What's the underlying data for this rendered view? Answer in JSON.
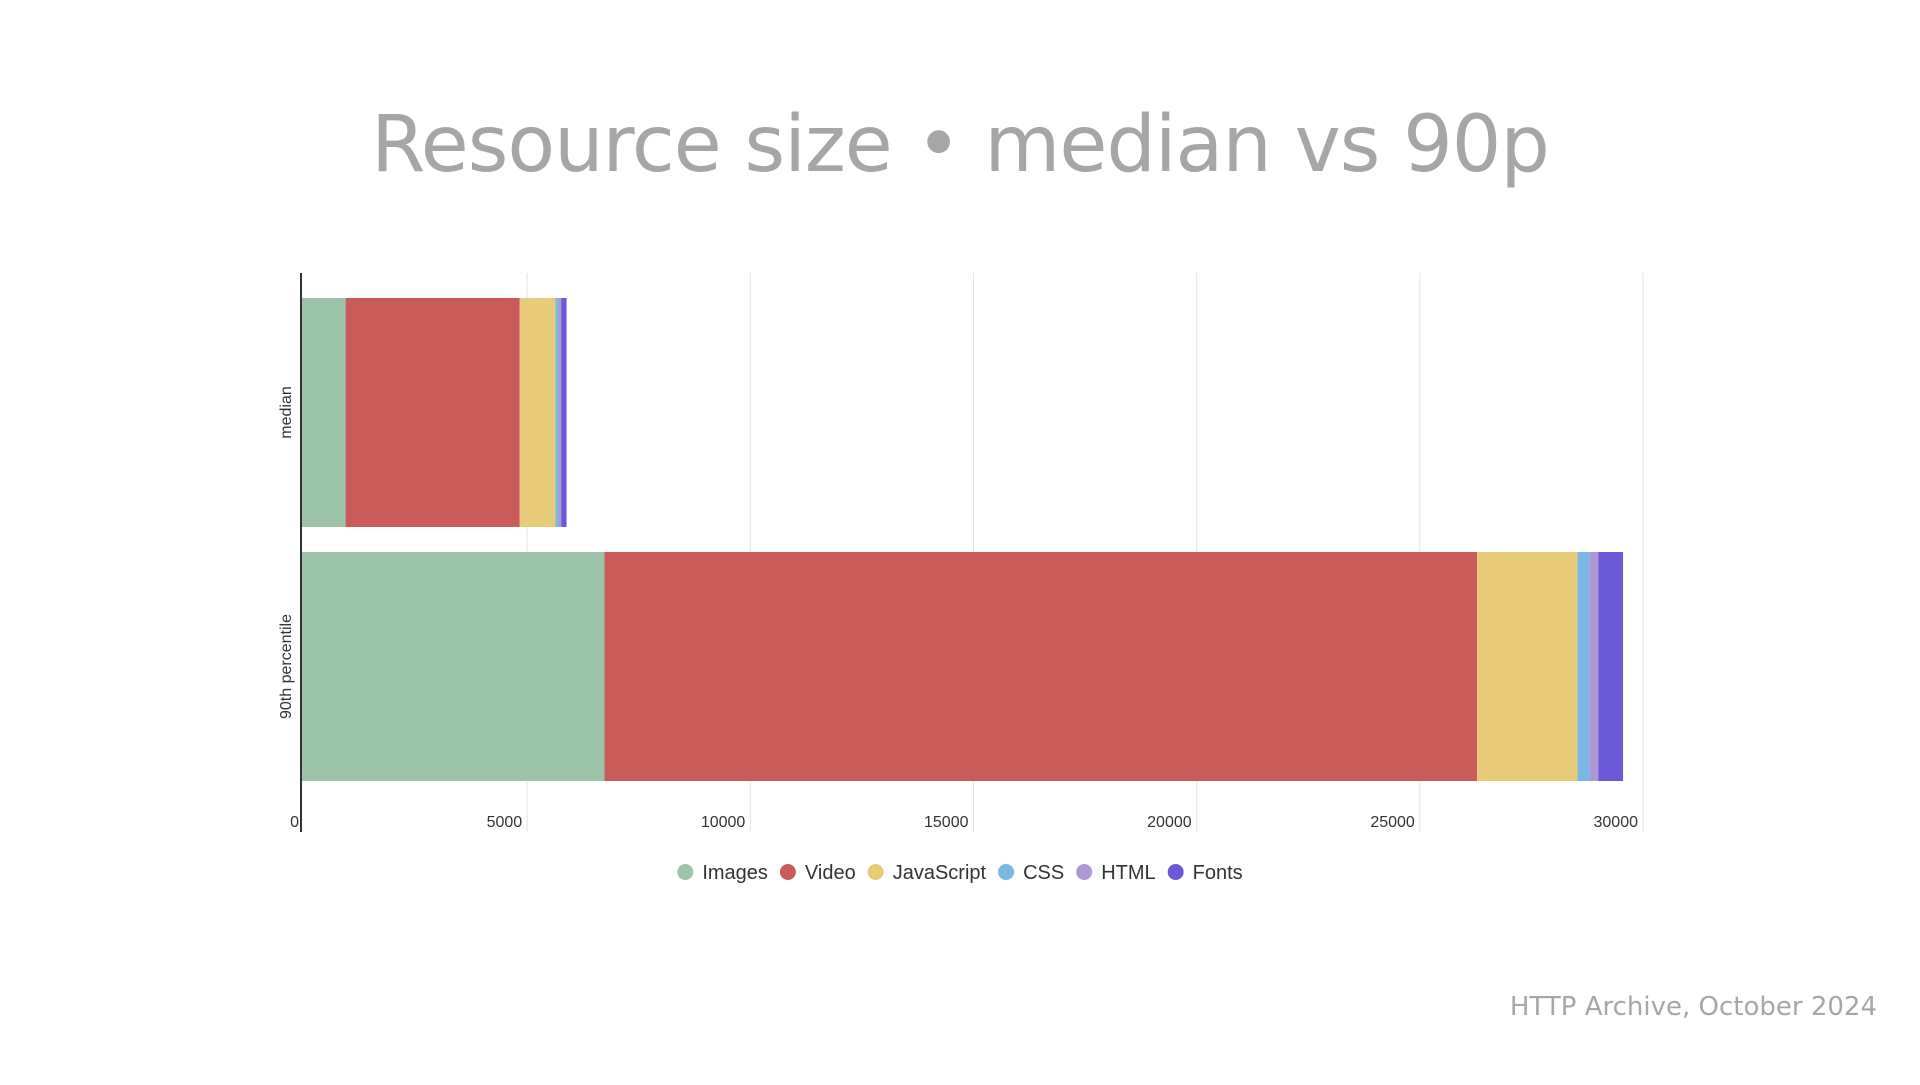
{
  "slide": {
    "title": "Resource size • median vs 90p",
    "footer": "HTTP Archive, October 2024"
  },
  "chart_data": {
    "type": "bar",
    "orientation": "horizontal",
    "stacked": true,
    "title": "",
    "xlabel": "",
    "ylabel": "",
    "xlim": [
      0,
      30000
    ],
    "xticks": [
      0,
      5000,
      10000,
      15000,
      20000,
      25000,
      30000
    ],
    "tick_labels": [
      "0",
      "5000",
      "10000",
      "15000",
      "20000",
      "25000",
      "30000"
    ],
    "grid": true,
    "legend_position": "bottom",
    "categories": [
      "median",
      "90th percentile"
    ],
    "series": [
      {
        "name": "Images",
        "color": "#9dc3a8",
        "values": [
          1000,
          6800
        ]
      },
      {
        "name": "Video",
        "color": "#c95c5b",
        "values": [
          3900,
          19550
        ]
      },
      {
        "name": "JavaScript",
        "color": "#e8cb78",
        "values": [
          800,
          2250
        ]
      },
      {
        "name": "CSS",
        "color": "#79b8e2",
        "values": [
          70,
          270
        ]
      },
      {
        "name": "HTML",
        "color": "#ae98d3",
        "values": [
          60,
          200
        ]
      },
      {
        "name": "Fonts",
        "color": "#6c59d8",
        "values": [
          120,
          550
        ]
      }
    ]
  }
}
